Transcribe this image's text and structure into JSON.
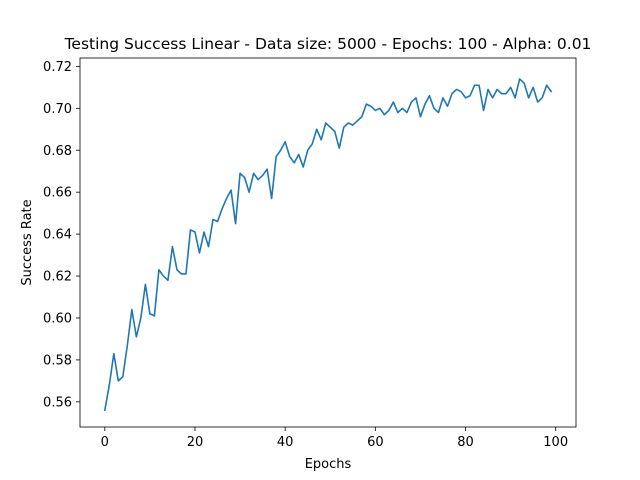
{
  "chart_data": {
    "type": "line",
    "title": "Testing Success Linear - Data size: 5000 - Epochs: 100 - Alpha: 0.01",
    "xlabel": "Epochs",
    "ylabel": "Success Rate",
    "xlim": [
      -5.5,
      104.5
    ],
    "ylim": [
      0.548,
      0.724
    ],
    "xticks": [
      0,
      20,
      40,
      60,
      80,
      100
    ],
    "xtick_labels": [
      "0",
      "20",
      "40",
      "60",
      "80",
      "100"
    ],
    "yticks": [
      0.56,
      0.58,
      0.6,
      0.62,
      0.64,
      0.66,
      0.68,
      0.7,
      0.72
    ],
    "ytick_labels": [
      "0.56",
      "0.58",
      "0.60",
      "0.62",
      "0.64",
      "0.66",
      "0.68",
      "0.70",
      "0.72"
    ],
    "grid": false,
    "series": [
      {
        "color": "#1f77b4",
        "x": [
          0,
          1,
          2,
          3,
          4,
          5,
          6,
          7,
          8,
          9,
          10,
          11,
          12,
          13,
          14,
          15,
          16,
          17,
          18,
          19,
          20,
          21,
          22,
          23,
          24,
          25,
          26,
          27,
          28,
          29,
          30,
          31,
          32,
          33,
          34,
          35,
          36,
          37,
          38,
          39,
          40,
          41,
          42,
          43,
          44,
          45,
          46,
          47,
          48,
          49,
          50,
          51,
          52,
          53,
          54,
          55,
          56,
          57,
          58,
          59,
          60,
          61,
          62,
          63,
          64,
          65,
          66,
          67,
          68,
          69,
          70,
          71,
          72,
          73,
          74,
          75,
          76,
          77,
          78,
          79,
          80,
          81,
          82,
          83,
          84,
          85,
          86,
          87,
          88,
          89,
          90,
          91,
          92,
          93,
          94,
          95,
          96,
          97,
          98,
          99
        ],
        "values": [
          0.556,
          0.568,
          0.583,
          0.57,
          0.572,
          0.587,
          0.604,
          0.591,
          0.6,
          0.616,
          0.602,
          0.601,
          0.623,
          0.62,
          0.618,
          0.634,
          0.623,
          0.621,
          0.621,
          0.642,
          0.641,
          0.631,
          0.641,
          0.634,
          0.647,
          0.646,
          0.652,
          0.657,
          0.661,
          0.645,
          0.669,
          0.667,
          0.66,
          0.669,
          0.666,
          0.668,
          0.671,
          0.657,
          0.677,
          0.68,
          0.684,
          0.677,
          0.674,
          0.678,
          0.672,
          0.68,
          0.683,
          0.69,
          0.685,
          0.693,
          0.691,
          0.689,
          0.681,
          0.691,
          0.693,
          0.692,
          0.694,
          0.696,
          0.702,
          0.701,
          0.699,
          0.7,
          0.697,
          0.699,
          0.703,
          0.698,
          0.7,
          0.698,
          0.703,
          0.705,
          0.696,
          0.702,
          0.706,
          0.7,
          0.698,
          0.705,
          0.701,
          0.707,
          0.709,
          0.708,
          0.705,
          0.706,
          0.711,
          0.711,
          0.699,
          0.709,
          0.705,
          0.709,
          0.707,
          0.707,
          0.71,
          0.705,
          0.714,
          0.712,
          0.705,
          0.71,
          0.703,
          0.705,
          0.711,
          0.708
        ]
      }
    ]
  }
}
